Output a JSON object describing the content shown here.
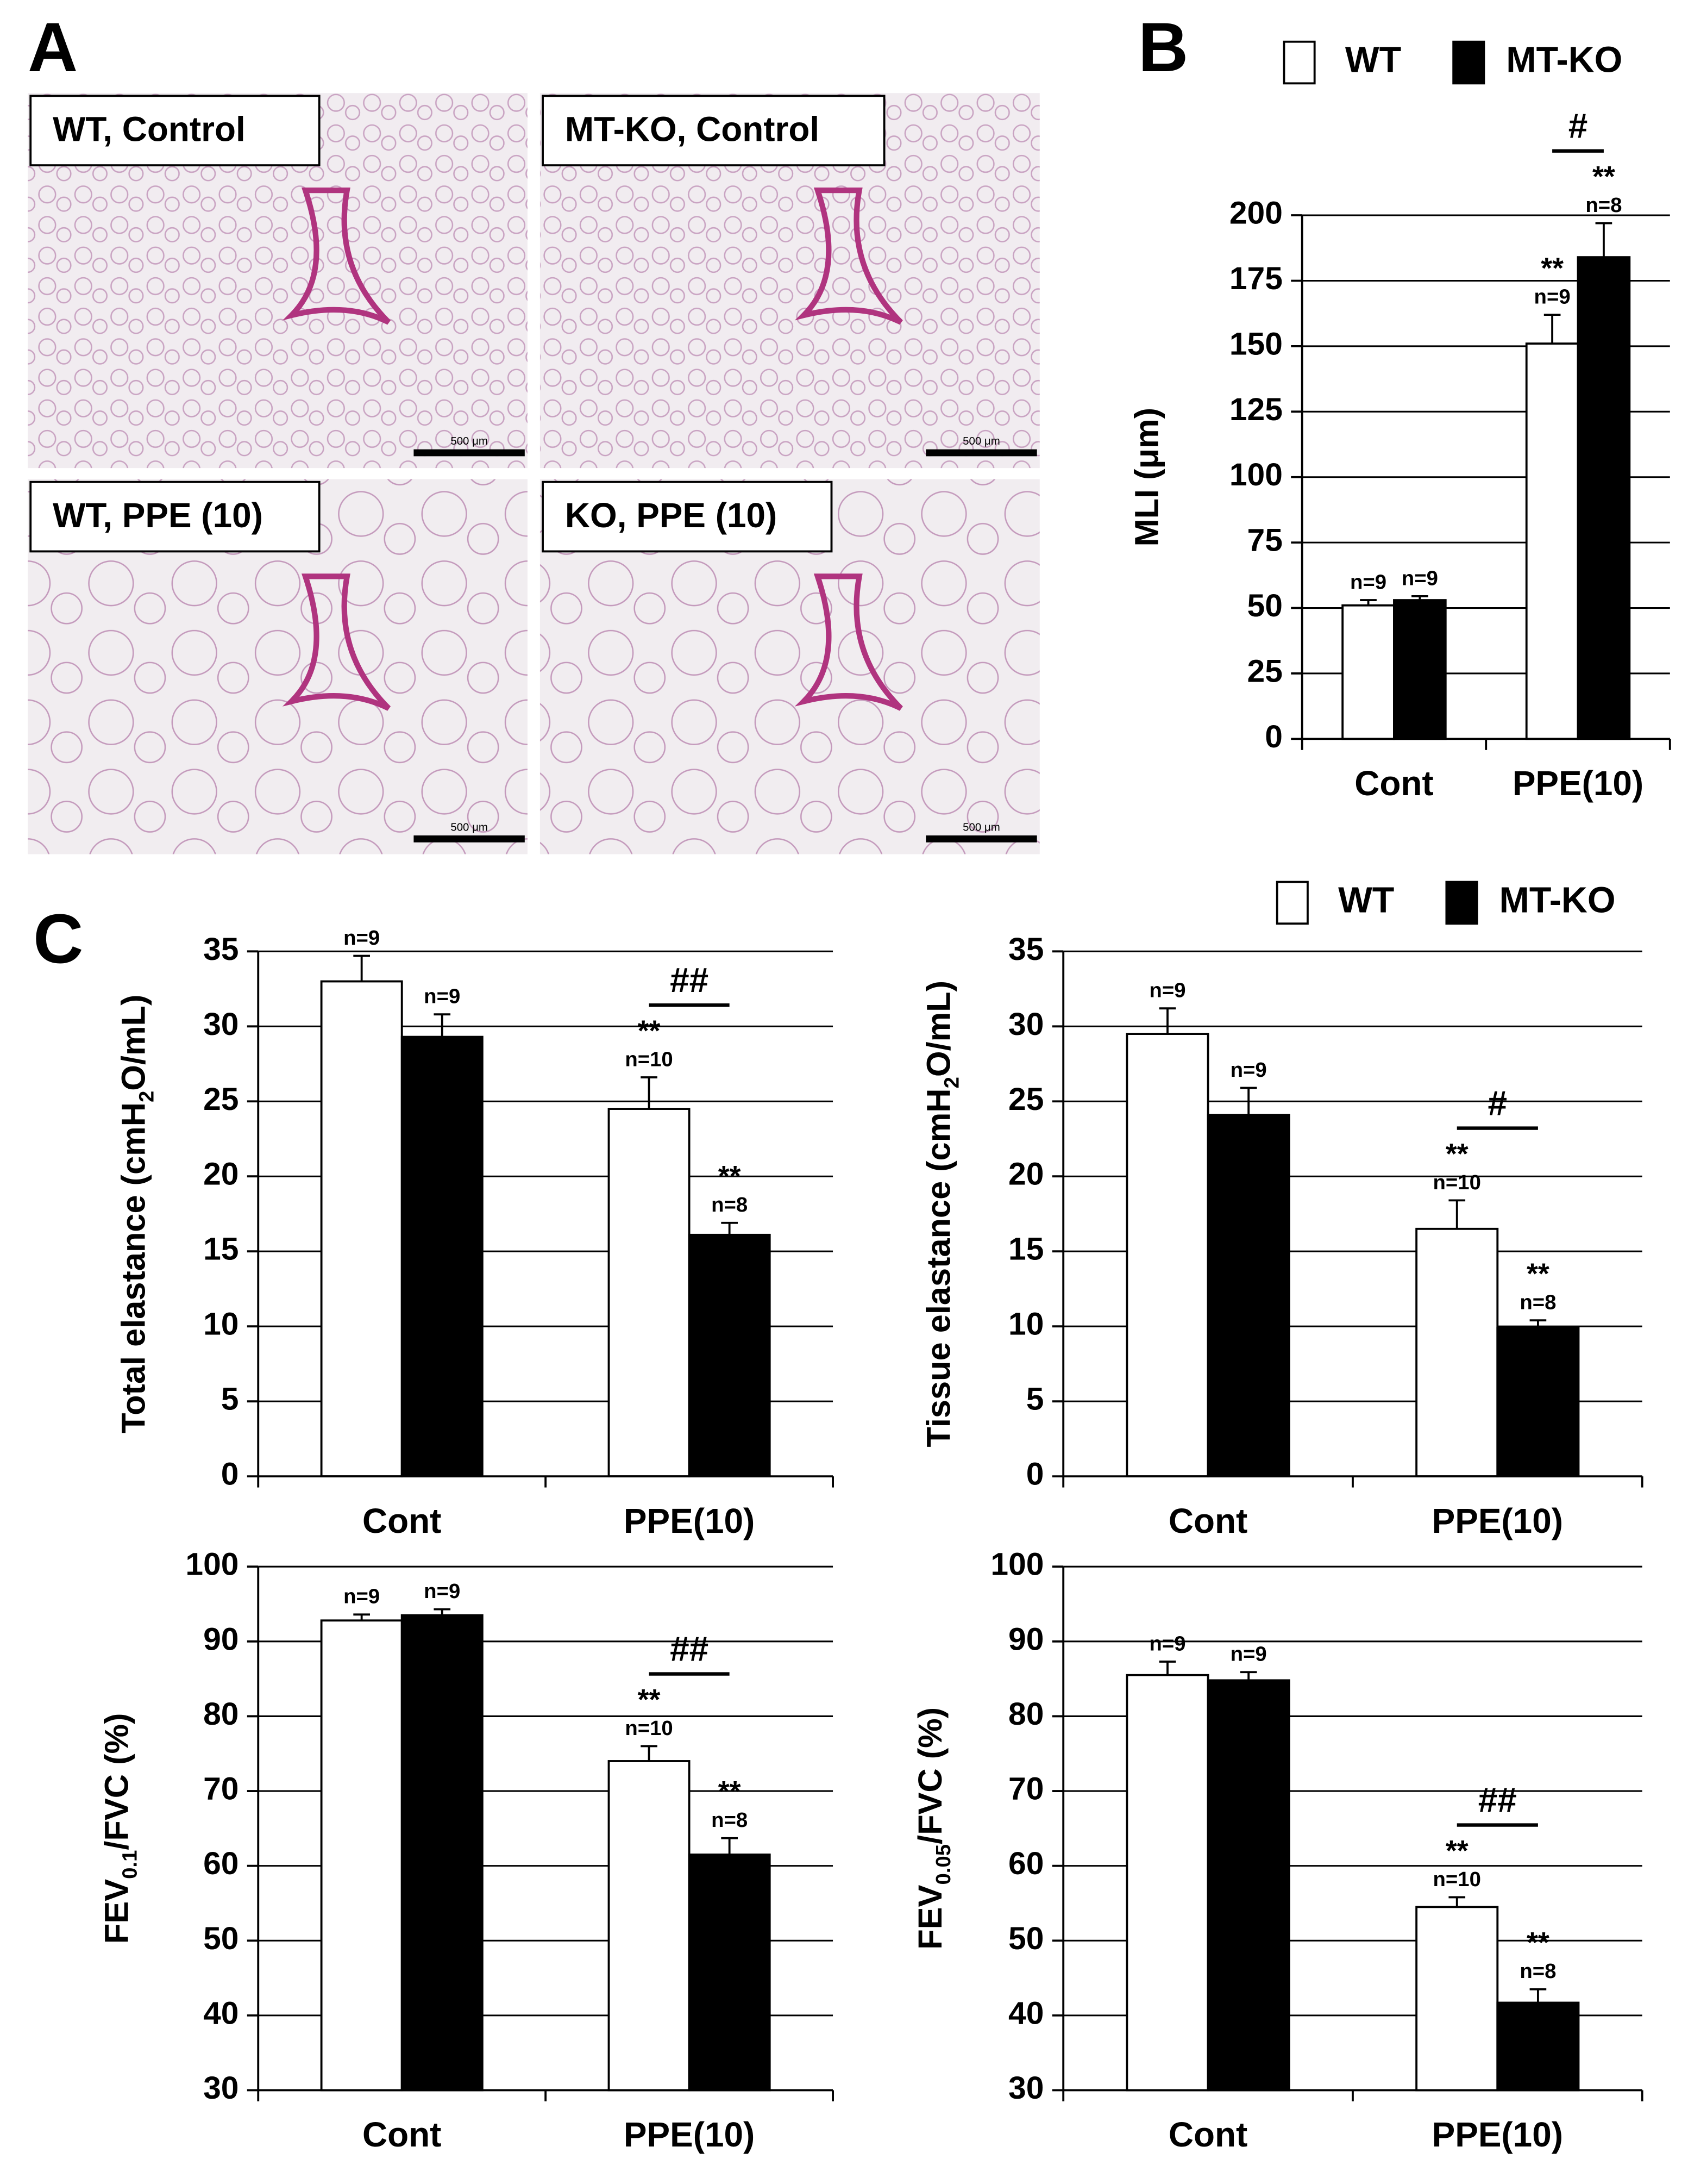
{
  "panel_labels": [
    "A",
    "B",
    "C"
  ],
  "micrographs": [
    {
      "label": "WT, Control",
      "scale_bar": "500 μm"
    },
    {
      "label": "MT-KO, Control",
      "scale_bar": "500 μm"
    },
    {
      "label": "WT, PPE (10)",
      "scale_bar": "500 μm"
    },
    {
      "label": "KO, PPE (10)",
      "scale_bar": "500 μm"
    }
  ],
  "chart_data": [
    {
      "type": "bar",
      "y_label": [
        {
          "text": "MLI (μm)"
        }
      ],
      "categories": [
        "Cont",
        "PPE(10)"
      ],
      "series": [
        {
          "name": "WT",
          "color": "#ffffff",
          "values": [
            51,
            151
          ],
          "errors": [
            2,
            11
          ],
          "n_labels": [
            "n=9",
            "n=9"
          ],
          "stars": [
            null,
            "**"
          ]
        },
        {
          "name": "MT-KO",
          "color": "#000000",
          "values": [
            53,
            184
          ],
          "errors": [
            1.5,
            13
          ],
          "n_labels": [
            "n=9",
            "n=8"
          ],
          "stars": [
            null,
            "**"
          ]
        }
      ],
      "ylim": [
        0,
        200
      ],
      "yticks": [
        0,
        25,
        50,
        75,
        100,
        125,
        150,
        175,
        200
      ],
      "grid": true,
      "bracket": "#"
    },
    {
      "type": "bar",
      "y_label": [
        {
          "text": "Total elastance (cmH"
        },
        {
          "text": "2",
          "sub": true
        },
        {
          "text": "O/mL)"
        }
      ],
      "categories": [
        "Cont",
        "PPE(10)"
      ],
      "series": [
        {
          "name": "WT",
          "color": "#ffffff",
          "values": [
            33,
            24.5
          ],
          "errors": [
            1.7,
            2.1
          ],
          "n_labels": [
            "n=9",
            "n=10"
          ],
          "stars": [
            null,
            "**"
          ]
        },
        {
          "name": "MT-KO",
          "color": "#000000",
          "values": [
            29.3,
            16.1
          ],
          "errors": [
            1.5,
            0.8
          ],
          "n_labels": [
            "n=9",
            "n=8"
          ],
          "stars": [
            null,
            "**"
          ]
        }
      ],
      "ylim": [
        0,
        35
      ],
      "yticks": [
        0,
        5,
        10,
        15,
        20,
        25,
        30,
        35
      ],
      "grid": true,
      "bracket": "##"
    },
    {
      "type": "bar",
      "y_label": [
        {
          "text": "Tissue elastance (cmH"
        },
        {
          "text": "2",
          "sub": true
        },
        {
          "text": "O/mL)"
        }
      ],
      "categories": [
        "Cont",
        "PPE(10)"
      ],
      "series": [
        {
          "name": "WT",
          "color": "#ffffff",
          "values": [
            29.5,
            16.5
          ],
          "errors": [
            1.7,
            1.9
          ],
          "n_labels": [
            "n=9",
            "n=10"
          ],
          "stars": [
            null,
            "**"
          ]
        },
        {
          "name": "MT-KO",
          "color": "#000000",
          "values": [
            24.1,
            9.9
          ],
          "errors": [
            1.8,
            0.5
          ],
          "n_labels": [
            "n=9",
            "n=8"
          ],
          "stars": [
            null,
            "**"
          ]
        }
      ],
      "ylim": [
        0,
        35
      ],
      "yticks": [
        0,
        5,
        10,
        15,
        20,
        25,
        30,
        35
      ],
      "grid": true,
      "bracket": "#"
    },
    {
      "type": "bar",
      "y_label": [
        {
          "text": "FEV"
        },
        {
          "text": "0.1",
          "sub": true
        },
        {
          "text": "/FVC (%)"
        }
      ],
      "categories": [
        "Cont",
        "PPE(10)"
      ],
      "series": [
        {
          "name": "WT",
          "color": "#ffffff",
          "values": [
            92.8,
            74
          ],
          "errors": [
            0.8,
            2
          ],
          "n_labels": [
            "n=9",
            "n=10"
          ],
          "stars": [
            null,
            "**"
          ]
        },
        {
          "name": "MT-KO",
          "color": "#000000",
          "values": [
            93.5,
            61.5
          ],
          "errors": [
            0.8,
            2.2
          ],
          "n_labels": [
            "n=9",
            "n=8"
          ],
          "stars": [
            null,
            "**"
          ]
        }
      ],
      "ylim": [
        30,
        100
      ],
      "yticks": [
        30,
        40,
        50,
        60,
        70,
        80,
        90,
        100
      ],
      "grid": true,
      "bracket": "##"
    },
    {
      "type": "bar",
      "y_label": [
        {
          "text": "FEV"
        },
        {
          "text": "0.05",
          "sub": true
        },
        {
          "text": "/FVC (%)"
        }
      ],
      "categories": [
        "Cont",
        "PPE(10)"
      ],
      "series": [
        {
          "name": "WT",
          "color": "#ffffff",
          "values": [
            85.5,
            54.5
          ],
          "errors": [
            1.8,
            1.3
          ],
          "n_labels": [
            "n=9",
            "n=10"
          ],
          "stars": [
            null,
            "**"
          ]
        },
        {
          "name": "MT-KO",
          "color": "#000000",
          "values": [
            84.8,
            41.7
          ],
          "errors": [
            1.1,
            1.8
          ],
          "n_labels": [
            "n=9",
            "n=8"
          ],
          "stars": [
            null,
            "**"
          ]
        }
      ],
      "ylim": [
        30,
        100
      ],
      "yticks": [
        30,
        40,
        50,
        60,
        70,
        80,
        90,
        100
      ],
      "grid": true,
      "bracket": "##"
    }
  ]
}
